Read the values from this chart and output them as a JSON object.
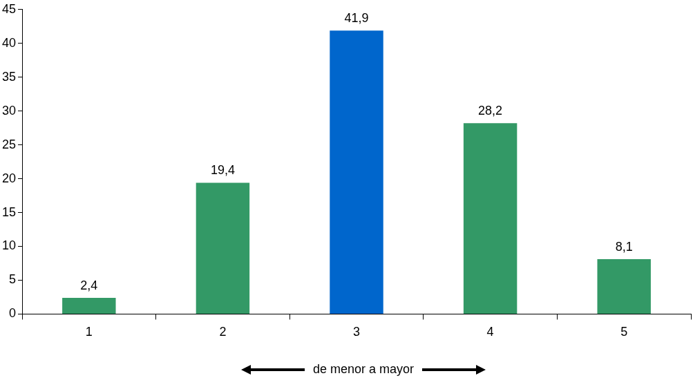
{
  "chart_data": {
    "type": "bar",
    "xlabel": "de menor a mayor",
    "categories": [
      "1",
      "2",
      "3",
      "4",
      "5"
    ],
    "values": [
      2.4,
      19.4,
      41.9,
      28.2,
      8.1
    ],
    "colors": [
      "#339966",
      "#339966",
      "#0066cc",
      "#339966",
      "#339966"
    ],
    "value_labels": [
      "2,4",
      "19,4",
      "41,9",
      "28,2",
      "8,1"
    ],
    "ylim": [
      0,
      45
    ],
    "yticks": [
      0,
      5,
      10,
      15,
      20,
      25,
      30,
      35,
      40,
      45
    ],
    "grid": false,
    "legend": false
  }
}
